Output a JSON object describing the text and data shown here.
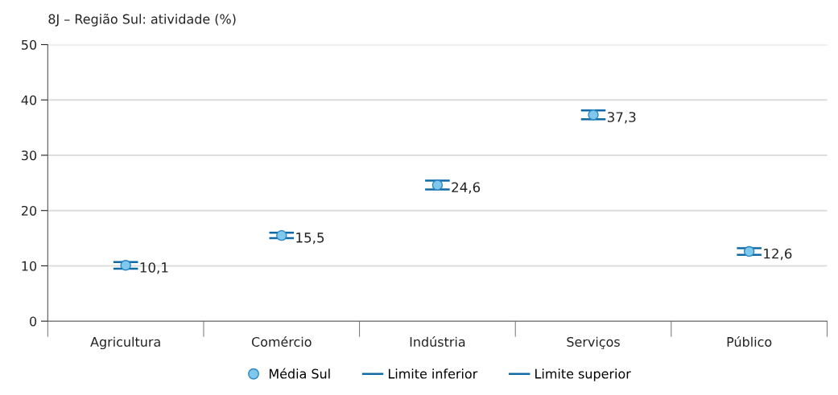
{
  "chart_data": {
    "type": "scatter",
    "title": "8J – Região Sul: atividade (%)",
    "categories": [
      "Agricultura",
      "Comércio",
      "Indústria",
      "Serviços",
      "Público"
    ],
    "series": [
      {
        "name": "Média Sul",
        "marker": "circle",
        "color": "#7fc8ec",
        "values": [
          10.1,
          15.5,
          24.6,
          37.3,
          12.6
        ],
        "value_labels": [
          "10,1",
          "15,5",
          "24,6",
          "37,3",
          "12,6"
        ],
        "errors": [
          [
            9.5,
            10.7
          ],
          [
            15.0,
            16.0
          ],
          [
            23.8,
            25.4
          ],
          [
            36.5,
            38.1
          ],
          [
            12.0,
            13.2
          ]
        ]
      },
      {
        "name": "Limite inferior",
        "color": "#0f6aa6",
        "values": [
          null,
          null,
          null,
          null,
          null
        ]
      },
      {
        "name": "Limite superior",
        "color": "#0f6aa6",
        "values": [
          null,
          null,
          null,
          null,
          null
        ]
      }
    ],
    "ylim": [
      0,
      50
    ],
    "yticks": [
      0,
      10,
      20,
      30,
      40,
      50
    ],
    "grid": "y",
    "legend": "bottom"
  }
}
